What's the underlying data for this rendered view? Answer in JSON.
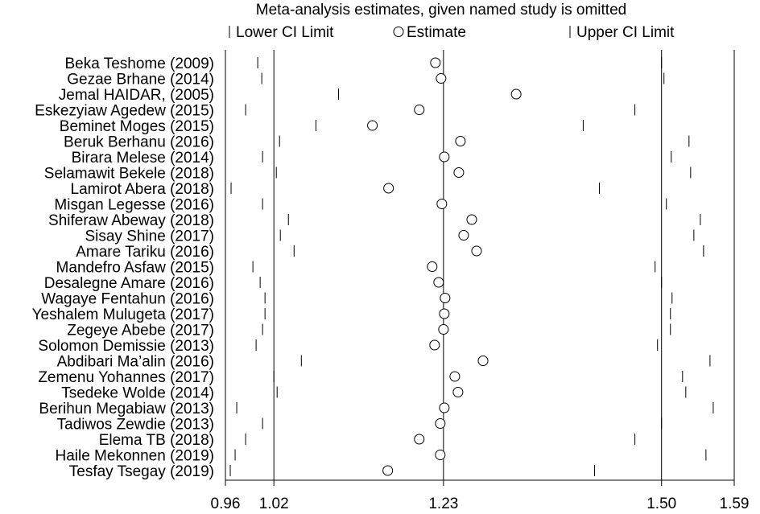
{
  "chart_data": {
    "type": "scatter",
    "title": "Meta-analysis estimates, given named study is omitted",
    "legend": {
      "placement": "top",
      "entries": [
        "Lower CI Limit",
        "Estimate",
        "Upper CI Limit"
      ]
    },
    "xlim": [
      0.96,
      1.59
    ],
    "xticks": [
      {
        "value": 0.96,
        "label": "0.96"
      },
      {
        "value": 1.02,
        "label": "1.02"
      },
      {
        "value": 1.23,
        "label": "1.23"
      },
      {
        "value": 1.5,
        "label": "1.50"
      },
      {
        "value": 1.59,
        "label": "1.59"
      }
    ],
    "reference_lines": [
      1.02,
      1.23,
      1.5
    ],
    "rows": [
      {
        "study": "Beka Teshome (2009)",
        "lower": 1.0,
        "estimate": 1.22,
        "upper": 1.5
      },
      {
        "study": "Gezae Brhane (2014)",
        "lower": 1.005,
        "estimate": 1.227,
        "upper": 1.503
      },
      {
        "study": "Jemal  HAIDAR, (2005)",
        "lower": 1.1,
        "estimate": 1.32,
        "upper": 1.59
      },
      {
        "study": "Eskezyiaw Agedew (2015)",
        "lower": 0.985,
        "estimate": 1.2,
        "upper": 1.467
      },
      {
        "study": "Beminet Moges (2015)",
        "lower": 1.072,
        "estimate": 1.142,
        "upper": 1.403
      },
      {
        "study": "Beruk Berhanu  (2016)",
        "lower": 1.027,
        "estimate": 1.251,
        "upper": 1.534
      },
      {
        "study": "Birara Melese  (2014)",
        "lower": 1.006,
        "estimate": 1.231,
        "upper": 1.512
      },
      {
        "study": "Selamawit Bekele  (2018)",
        "lower": 1.023,
        "estimate": 1.249,
        "upper": 1.536
      },
      {
        "study": "Lamirot Abera (2018)",
        "lower": 0.967,
        "estimate": 1.162,
        "upper": 1.423
      },
      {
        "study": "Misgan Legesse  (2016)",
        "lower": 1.006,
        "estimate": 1.228,
        "upper": 1.506
      },
      {
        "study": "Shiferaw Abeway (2018)",
        "lower": 1.038,
        "estimate": 1.265,
        "upper": 1.548
      },
      {
        "study": "Sisay Shine (2017)",
        "lower": 1.028,
        "estimate": 1.255,
        "upper": 1.54
      },
      {
        "study": "Amare Tariku (2016)",
        "lower": 1.045,
        "estimate": 1.271,
        "upper": 1.552
      },
      {
        "study": "Mandefro Asfaw (2015)",
        "lower": 0.994,
        "estimate": 1.216,
        "upper": 1.492
      },
      {
        "study": "Desalegne Amare (2016)",
        "lower": 1.003,
        "estimate": 1.224,
        "upper": 1.5
      },
      {
        "study": "Wagaye Fentahun (2016)",
        "lower": 1.009,
        "estimate": 1.232,
        "upper": 1.513
      },
      {
        "study": "Yeshalem Mulugeta (2017)",
        "lower": 1.009,
        "estimate": 1.231,
        "upper": 1.511
      },
      {
        "study": "Zegeye Abebe (2017)",
        "lower": 1.006,
        "estimate": 1.23,
        "upper": 1.511
      },
      {
        "study": "Solomon Demissie (2013)",
        "lower": 0.998,
        "estimate": 1.219,
        "upper": 1.495
      },
      {
        "study": "Abdibari Ma’alin (2016)",
        "lower": 1.054,
        "estimate": 1.279,
        "upper": 1.56
      },
      {
        "study": "Zemenu Yohannes  (2017)",
        "lower": 1.02,
        "estimate": 1.244,
        "upper": 1.526
      },
      {
        "study": "Tsedeke Wolde  (2014)",
        "lower": 1.024,
        "estimate": 1.248,
        "upper": 1.53
      },
      {
        "study": "Berihun Megabiaw (2013)",
        "lower": 0.974,
        "estimate": 1.231,
        "upper": 1.564
      },
      {
        "study": "Tadiwos Zewdie (2013)",
        "lower": 1.006,
        "estimate": 1.226,
        "upper": 1.5
      },
      {
        "study": "Elema TB (2018)",
        "lower": 0.985,
        "estimate": 1.2,
        "upper": 1.467
      },
      {
        "study": "Haile Mekonnen (2019)",
        "lower": 0.972,
        "estimate": 1.226,
        "upper": 1.555
      },
      {
        "study": "Tesfay Tsegay (2019)",
        "lower": 0.966,
        "estimate": 1.161,
        "upper": 1.417
      }
    ]
  }
}
